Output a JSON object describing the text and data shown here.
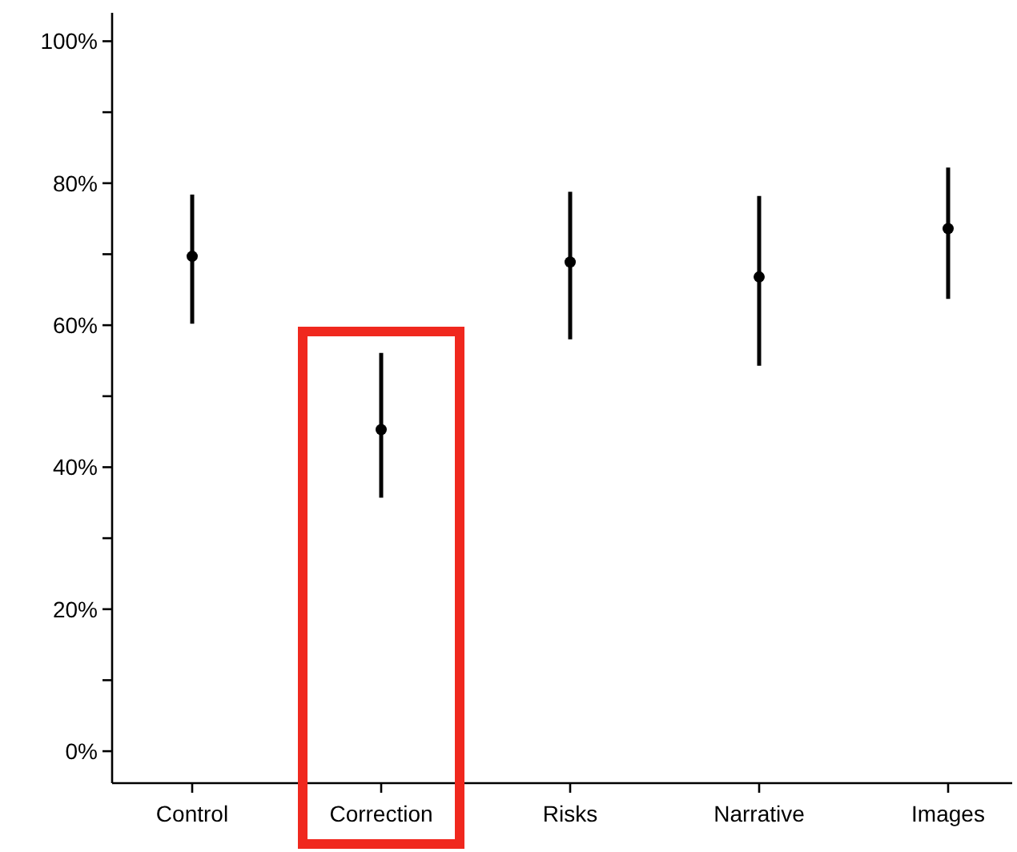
{
  "chart_data": {
    "type": "scatter",
    "categories": [
      "Control",
      "Correction",
      "Risks",
      "Narrative",
      "Images"
    ],
    "values": [
      69.7,
      45.3,
      68.9,
      66.8,
      73.6
    ],
    "errors": [
      [
        60.2,
        78.4
      ],
      [
        35.7,
        56.1
      ],
      [
        58.0,
        78.8
      ],
      [
        54.3,
        78.2
      ],
      [
        63.7,
        82.2
      ]
    ],
    "color": "#000000",
    "marker": "circle",
    "grid": false,
    "ylim": [
      -4.5,
      104
    ],
    "yticks": [
      {
        "value": 0,
        "label": "0%"
      },
      {
        "value": 10,
        "label": null
      },
      {
        "value": 20,
        "label": "20%"
      },
      {
        "value": 30,
        "label": null
      },
      {
        "value": 40,
        "label": "40%"
      },
      {
        "value": 50,
        "label": null
      },
      {
        "value": 60,
        "label": "60%"
      },
      {
        "value": 70,
        "label": null
      },
      {
        "value": 80,
        "label": "80%"
      },
      {
        "value": 90,
        "label": null
      },
      {
        "value": 100,
        "label": "100%"
      }
    ]
  }
}
